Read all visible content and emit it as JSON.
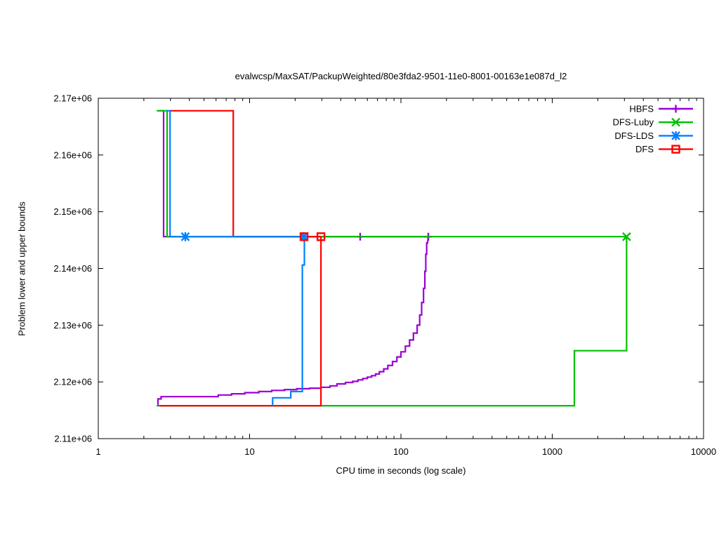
{
  "title": "evalwcsp/MaxSAT/PackupWeighted/80e3fda2-9501-11e0-8001-00163e1e087d_l2",
  "axis": {
    "xlabel": "CPU time in seconds (log scale)",
    "ylabel": "Problem lower and upper bounds"
  },
  "chart_data": {
    "type": "line",
    "title": "evalwcsp/MaxSAT/PackupWeighted/80e3fda2-9501-11e0-8001-00163e1e087d_l2",
    "xlabel": "CPU time in seconds (log scale)",
    "ylabel": "Problem lower and upper bounds",
    "x_scale": "log",
    "xlim": [
      1,
      10000
    ],
    "ylim": [
      2110000,
      2170000
    ],
    "grid": false,
    "legend_position": "top-right",
    "x_ticks": [
      {
        "value": 1,
        "label": "1"
      },
      {
        "value": 10,
        "label": "10"
      },
      {
        "value": 100,
        "label": "100"
      },
      {
        "value": 1000,
        "label": "1000"
      },
      {
        "value": 10000,
        "label": "10000"
      }
    ],
    "x_minor_ticks": [
      2,
      3,
      4,
      5,
      6,
      7,
      8,
      9,
      20,
      30,
      40,
      50,
      60,
      70,
      80,
      90,
      200,
      300,
      400,
      500,
      600,
      700,
      800,
      900,
      2000,
      3000,
      4000,
      5000,
      6000,
      7000,
      8000,
      9000
    ],
    "y_ticks": [
      {
        "value": 2110000,
        "label": "2.11e+06"
      },
      {
        "value": 2120000,
        "label": "2.12e+06"
      },
      {
        "value": 2130000,
        "label": "2.13e+06"
      },
      {
        "value": 2140000,
        "label": "2.14e+06"
      },
      {
        "value": 2150000,
        "label": "2.15e+06"
      },
      {
        "value": 2160000,
        "label": "2.16e+06"
      },
      {
        "value": 2170000,
        "label": "2.17e+06"
      }
    ],
    "plateau_upper_bound": 2145600,
    "initial_upper_bound": 2167800,
    "series": [
      {
        "name": "HBFS",
        "color": "#9c00d4",
        "marker": "plus",
        "optimum_proved_at_seconds": 152,
        "upper_bound": [
          [
            2.5,
            2167800
          ],
          [
            2.7,
            2167800
          ],
          [
            2.7,
            2145600
          ],
          [
            151.7,
            2145600
          ]
        ],
        "lower_bound": [
          [
            2.48,
            2115800
          ],
          [
            2.48,
            2117000
          ],
          [
            2.6,
            2117000
          ],
          [
            2.6,
            2117400
          ],
          [
            6.2,
            2117400
          ],
          [
            6.2,
            2117700
          ],
          [
            7.6,
            2117700
          ],
          [
            7.6,
            2117900
          ],
          [
            9.3,
            2117900
          ],
          [
            9.3,
            2118100
          ],
          [
            11.5,
            2118100
          ],
          [
            11.5,
            2118300
          ],
          [
            14,
            2118300
          ],
          [
            14,
            2118500
          ],
          [
            17,
            2118500
          ],
          [
            17,
            2118650
          ],
          [
            20.5,
            2118650
          ],
          [
            20.5,
            2118800
          ],
          [
            25,
            2118800
          ],
          [
            25,
            2118900
          ],
          [
            29.6,
            2118900
          ],
          [
            29.6,
            2119050
          ],
          [
            34,
            2119050
          ],
          [
            34,
            2119300
          ],
          [
            37.8,
            2119300
          ],
          [
            37.8,
            2119650
          ],
          [
            43,
            2119650
          ],
          [
            43,
            2119900
          ],
          [
            48,
            2119900
          ],
          [
            48,
            2120100
          ],
          [
            52,
            2120100
          ],
          [
            52,
            2120350
          ],
          [
            56,
            2120350
          ],
          [
            56,
            2120600
          ],
          [
            60,
            2120600
          ],
          [
            60,
            2120850
          ],
          [
            64,
            2120850
          ],
          [
            64,
            2121100
          ],
          [
            68,
            2121100
          ],
          [
            68,
            2121400
          ],
          [
            72,
            2121400
          ],
          [
            72,
            2121800
          ],
          [
            77,
            2121800
          ],
          [
            77,
            2122300
          ],
          [
            82,
            2122300
          ],
          [
            82,
            2122900
          ],
          [
            88,
            2122900
          ],
          [
            88,
            2123600
          ],
          [
            94,
            2123600
          ],
          [
            94,
            2124400
          ],
          [
            100,
            2124400
          ],
          [
            100,
            2125300
          ],
          [
            107,
            2125300
          ],
          [
            107,
            2126300
          ],
          [
            114,
            2126300
          ],
          [
            114,
            2127400
          ],
          [
            121,
            2127400
          ],
          [
            121,
            2128600
          ],
          [
            128,
            2128600
          ],
          [
            128,
            2130000
          ],
          [
            133,
            2130000
          ],
          [
            133,
            2131800
          ],
          [
            137,
            2131800
          ],
          [
            137,
            2134000
          ],
          [
            141,
            2134000
          ],
          [
            141,
            2136500
          ],
          [
            144,
            2136500
          ],
          [
            144,
            2139500
          ],
          [
            146,
            2139500
          ],
          [
            146,
            2142500
          ],
          [
            148,
            2142500
          ],
          [
            148,
            2144500
          ],
          [
            150,
            2144500
          ],
          [
            151.7,
            2145600
          ]
        ],
        "marker_points": [
          [
            53.8,
            2145600
          ],
          [
            151.7,
            2145600
          ]
        ]
      },
      {
        "name": "DFS-Luby",
        "color": "#00c000",
        "marker": "cross",
        "optimum_proved_at_seconds": 3100,
        "upper_bound": [
          [
            2.43,
            2167800
          ],
          [
            2.85,
            2167800
          ],
          [
            2.85,
            2145600
          ],
          [
            3100,
            2145600
          ]
        ],
        "lower_bound": [
          [
            2.43,
            2115800
          ],
          [
            1400,
            2115800
          ],
          [
            1400,
            2125500
          ],
          [
            3100,
            2125500
          ],
          [
            3100,
            2145600
          ]
        ],
        "marker_points": [
          [
            3100,
            2145600
          ]
        ]
      },
      {
        "name": "DFS-LDS",
        "color": "#0080ff",
        "marker": "asterisk",
        "optimum_proved_at_seconds": 23,
        "upper_bound": [
          [
            2.82,
            2167800
          ],
          [
            2.98,
            2167800
          ],
          [
            2.98,
            2145600
          ],
          [
            23.2,
            2145600
          ]
        ],
        "lower_bound": [
          [
            14.2,
            2115800
          ],
          [
            14.2,
            2117200
          ],
          [
            18.7,
            2117200
          ],
          [
            18.7,
            2118300
          ],
          [
            22.3,
            2118300
          ],
          [
            22.3,
            2140600
          ],
          [
            23.0,
            2140600
          ],
          [
            23.0,
            2145600
          ]
        ],
        "marker_points": [
          [
            3.76,
            2145600
          ],
          [
            22.8,
            2145600
          ]
        ]
      },
      {
        "name": "DFS",
        "color": "#ff0000",
        "marker": "square",
        "optimum_proved_at_seconds": 29.6,
        "upper_bound": [
          [
            2.98,
            2167800
          ],
          [
            7.8,
            2167800
          ],
          [
            7.8,
            2145600
          ],
          [
            29.6,
            2145600
          ]
        ],
        "lower_bound": [
          [
            2.53,
            2115800
          ],
          [
            29.6,
            2115800
          ],
          [
            29.6,
            2145600
          ]
        ],
        "marker_points": [
          [
            22.9,
            2145600
          ],
          [
            29.6,
            2145600
          ]
        ]
      }
    ],
    "draw_sequence": [
      {
        "series": "HBFS",
        "part": "lines"
      },
      {
        "series": "HBFS",
        "part": "markers"
      },
      {
        "series": "DFS-Luby",
        "part": "lines"
      },
      {
        "series": "DFS",
        "part": "lines"
      },
      {
        "series": "DFS-LDS",
        "part": "lines"
      },
      {
        "series": "DFS-Luby",
        "part": "markers"
      },
      {
        "series": "DFS-LDS",
        "part": "markers"
      },
      {
        "series": "DFS",
        "part": "markers"
      }
    ],
    "legend": [
      {
        "label": "HBFS"
      },
      {
        "label": "DFS-Luby"
      },
      {
        "label": "DFS-LDS"
      },
      {
        "label": "DFS"
      }
    ]
  }
}
